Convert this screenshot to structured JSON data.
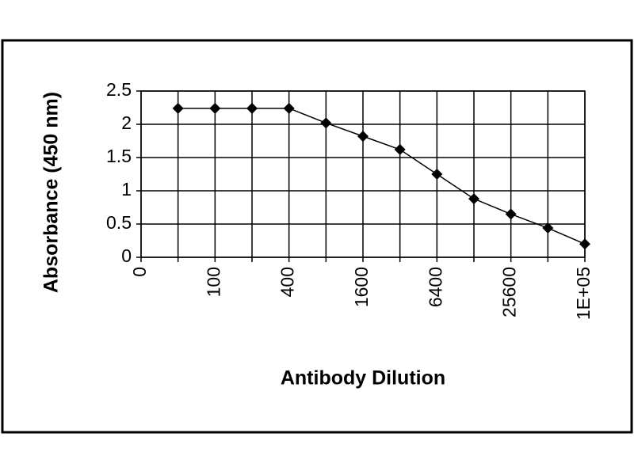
{
  "chart_data": {
    "type": "line",
    "x_label": "Antibody Dilution",
    "y_label": "Absorbance (450 nm)",
    "categories": [
      "0",
      null,
      "100",
      null,
      "400",
      null,
      "1600",
      null,
      "6400",
      null,
      "25600",
      null,
      "1E+05"
    ],
    "series": [
      {
        "name": null,
        "color": "#000000",
        "values": [
          null,
          2.24,
          2.24,
          2.24,
          2.24,
          2.02,
          1.82,
          1.62,
          1.25,
          0.88,
          0.65,
          0.44,
          0.2
        ]
      }
    ],
    "ylim": [
      0,
      2.5
    ],
    "yticks": [
      0,
      0.5,
      1,
      1.5,
      2,
      2.5
    ],
    "grid": true
  }
}
